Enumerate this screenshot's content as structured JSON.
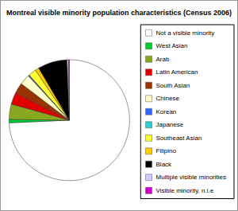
{
  "chart_data": {
    "type": "pie",
    "title": "Montreal visible minority population characteristics (Census 2006)",
    "categories": [
      "Not a visible minority",
      "West Asian",
      "Arab",
      "Latin American",
      "South Asian",
      "Chinese",
      "Korean",
      "Japanese",
      "Southeast Asian",
      "Filipino",
      "Black",
      "Multiple visible minorities",
      "Visible minority, n.i.e"
    ],
    "values": [
      74.3,
      0.9,
      4.1,
      3.2,
      2.8,
      2.8,
      0.2,
      0.1,
      2.1,
      1.0,
      7.9,
      0.4,
      0.2
    ],
    "colors": [
      "#ffffff",
      "#00cc33",
      "#88a820",
      "#e00000",
      "#993300",
      "#ffffcc",
      "#3366ff",
      "#33cccc",
      "#ffff33",
      "#ffcc00",
      "#000000",
      "#ccccff",
      "#cc00cc"
    ],
    "legend": "right"
  }
}
